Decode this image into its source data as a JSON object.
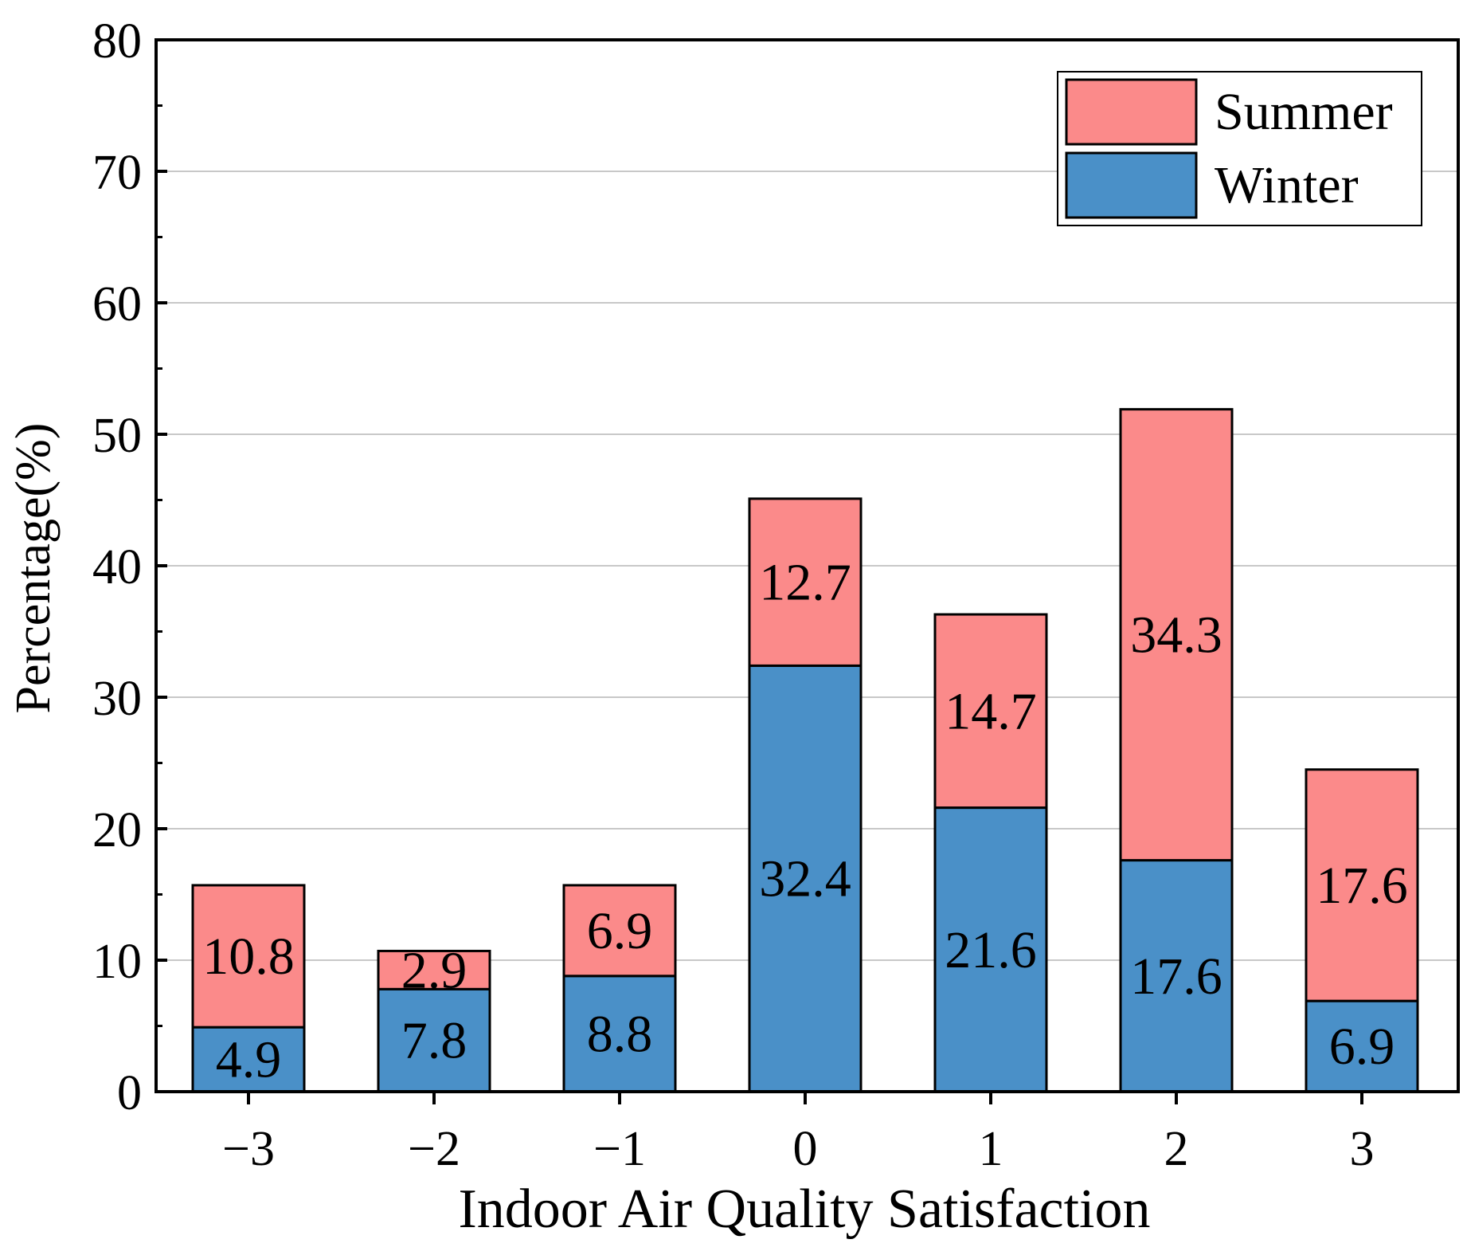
{
  "chart_data": {
    "type": "bar",
    "stacked": true,
    "title": "",
    "xlabel": "Indoor Air Quality Satisfaction",
    "ylabel": "Percentage(%)",
    "ylim": [
      0,
      80
    ],
    "yticks": [
      "0",
      "10",
      "20",
      "30",
      "40",
      "50",
      "60",
      "70",
      "80"
    ],
    "ytick_values": [
      0,
      10,
      20,
      30,
      40,
      50,
      60,
      70,
      80
    ],
    "categories": [
      "−3",
      "−2",
      "−1",
      "0",
      "1",
      "2",
      "3"
    ],
    "series": [
      {
        "name": "Winter",
        "color": "#4a90c8",
        "values": [
          4.9,
          7.8,
          8.8,
          32.4,
          21.6,
          17.6,
          6.9
        ],
        "labels": [
          "4.9",
          "7.8",
          "8.8",
          "32.4",
          "21.6",
          "17.6",
          "6.9"
        ]
      },
      {
        "name": "Summer",
        "color": "#fb8a8a",
        "values": [
          10.8,
          2.9,
          6.9,
          12.7,
          14.7,
          34.3,
          17.6
        ],
        "labels": [
          "10.8",
          "2.9",
          "6.9",
          "12.7",
          "14.7",
          "34.3",
          "17.6"
        ]
      }
    ],
    "legend": {
      "position": "top-right",
      "entries": [
        "Summer",
        "Winter"
      ]
    },
    "grid": true
  }
}
